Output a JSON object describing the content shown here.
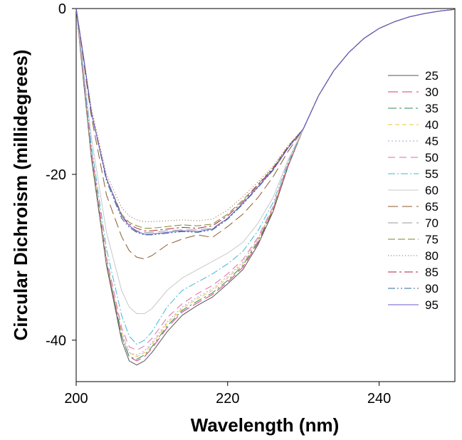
{
  "chart_data": {
    "type": "line",
    "title": "",
    "xlabel": "Wavelength (nm)",
    "ylabel": "Circular Dichroism (millidegrees)",
    "xlim": [
      200,
      250
    ],
    "ylim": [
      -45,
      0
    ],
    "xticks": [
      200,
      220,
      240
    ],
    "yticks": [
      0,
      -20,
      -40
    ],
    "xtick_labels": [
      "200",
      "220",
      "240"
    ],
    "ytick_labels": [
      "0",
      "-20",
      "-40"
    ],
    "grid": false,
    "legend_position": "right",
    "series": [
      {
        "name": "25",
        "color": "#555555",
        "dash": "",
        "x": [
          200,
          201,
          202,
          204,
          206,
          207,
          208,
          209,
          210,
          212,
          214,
          216,
          218,
          220,
          222,
          224,
          226,
          228,
          230,
          232,
          234,
          236,
          238,
          240,
          242,
          244,
          246,
          248,
          250
        ],
        "y": [
          0,
          -9,
          -18,
          -31,
          -40,
          -42.5,
          -43,
          -42.5,
          -41.5,
          -39,
          -37,
          -35.8,
          -34.8,
          -33.2,
          -31.5,
          -28.5,
          -24.5,
          -19,
          -14.5,
          -10.5,
          -7.5,
          -5.3,
          -3.6,
          -2.4,
          -1.6,
          -1,
          -0.6,
          -0.3,
          -0.1
        ]
      },
      {
        "name": "30",
        "color": "#d9397f",
        "dash": "14,6",
        "x": [
          200,
          201,
          202,
          204,
          206,
          207,
          208,
          209,
          210,
          212,
          214,
          216,
          218,
          220,
          222,
          224,
          226,
          228,
          230,
          232,
          234,
          236,
          238,
          240,
          242,
          244,
          246,
          248,
          250
        ],
        "y": [
          0,
          -8.5,
          -17.5,
          -30.5,
          -39.5,
          -42,
          -42.5,
          -42,
          -41,
          -38.5,
          -36.6,
          -35.5,
          -34.5,
          -33,
          -31.2,
          -28.3,
          -24.3,
          -18.9,
          -14.5,
          -10.5,
          -7.5,
          -5.3,
          -3.6,
          -2.4,
          -1.6,
          -1,
          -0.6,
          -0.3,
          -0.1
        ]
      },
      {
        "name": "35",
        "color": "#2e8b57",
        "dash": "12,4,3,4",
        "x": [
          200,
          201,
          202,
          204,
          206,
          207,
          208,
          209,
          210,
          212,
          214,
          216,
          218,
          220,
          222,
          224,
          226,
          228,
          230,
          232,
          234,
          236,
          238,
          240,
          242,
          244,
          246,
          248,
          250
        ],
        "y": [
          0,
          -8.5,
          -17.5,
          -30.5,
          -39.5,
          -42,
          -42.3,
          -41.8,
          -40.8,
          -38.3,
          -36.4,
          -35.3,
          -34.3,
          -32.8,
          -31,
          -28.1,
          -24.2,
          -18.8,
          -14.5,
          -10.5,
          -7.5,
          -5.3,
          -3.6,
          -2.4,
          -1.6,
          -1,
          -0.6,
          -0.3,
          -0.1
        ]
      },
      {
        "name": "40",
        "color": "#f2c230",
        "dash": "6,4",
        "x": [
          200,
          201,
          202,
          204,
          206,
          207,
          208,
          209,
          210,
          212,
          214,
          216,
          218,
          220,
          222,
          224,
          226,
          228,
          230,
          232,
          234,
          236,
          238,
          240,
          242,
          244,
          246,
          248,
          250
        ],
        "y": [
          0,
          -8.5,
          -17.5,
          -30.5,
          -39,
          -41.5,
          -42,
          -41.5,
          -40.5,
          -38,
          -36.2,
          -35,
          -34,
          -32.5,
          -30.8,
          -27.9,
          -24.1,
          -18.8,
          -14.5,
          -10.5,
          -7.5,
          -5.3,
          -3.6,
          -2.4,
          -1.6,
          -1,
          -0.6,
          -0.3,
          -0.1
        ]
      },
      {
        "name": "45",
        "color": "#b39bd1",
        "dash": "2,3",
        "x": [
          200,
          201,
          202,
          204,
          206,
          207,
          208,
          209,
          210,
          212,
          214,
          216,
          218,
          220,
          222,
          224,
          226,
          228,
          230,
          232,
          234,
          236,
          238,
          240,
          242,
          244,
          246,
          248,
          250
        ],
        "y": [
          0,
          -8.5,
          -17.5,
          -30.5,
          -39,
          -41.5,
          -41.8,
          -41.3,
          -40.3,
          -37.8,
          -36,
          -34.8,
          -33.8,
          -32.3,
          -30.6,
          -27.8,
          -24,
          -18.7,
          -14.5,
          -10.5,
          -7.5,
          -5.3,
          -3.6,
          -2.4,
          -1.6,
          -1,
          -0.6,
          -0.3,
          -0.1
        ]
      },
      {
        "name": "50",
        "color": "#e26aa6",
        "dash": "10,6",
        "x": [
          200,
          201,
          202,
          204,
          206,
          207,
          208,
          209,
          210,
          212,
          214,
          216,
          218,
          220,
          222,
          224,
          226,
          228,
          230,
          232,
          234,
          236,
          238,
          240,
          242,
          244,
          246,
          248,
          250
        ],
        "y": [
          0,
          -8.5,
          -17,
          -30,
          -38.5,
          -40.8,
          -41.2,
          -40.7,
          -39.8,
          -37.3,
          -35.6,
          -34.4,
          -33.4,
          -32,
          -30.3,
          -27.6,
          -23.9,
          -18.7,
          -14.5,
          -10.5,
          -7.5,
          -5.3,
          -3.6,
          -2.4,
          -1.6,
          -1,
          -0.6,
          -0.3,
          -0.1
        ]
      },
      {
        "name": "55",
        "color": "#3fb8d6",
        "dash": "10,3,2,3",
        "x": [
          200,
          201,
          202,
          204,
          206,
          207,
          208,
          209,
          210,
          212,
          214,
          216,
          218,
          220,
          222,
          224,
          226,
          228,
          230,
          232,
          234,
          236,
          238,
          240,
          242,
          244,
          246,
          248,
          250
        ],
        "y": [
          0,
          -8,
          -16.5,
          -29,
          -37,
          -39.5,
          -40.5,
          -40,
          -39,
          -36,
          -34,
          -33,
          -32,
          -30.8,
          -29.3,
          -26.8,
          -23.4,
          -18.5,
          -14.5,
          -10.5,
          -7.5,
          -5.3,
          -3.6,
          -2.4,
          -1.6,
          -1,
          -0.6,
          -0.3,
          -0.1
        ]
      },
      {
        "name": "60",
        "color": "#c8c8c8",
        "dash": "",
        "x": [
          200,
          201,
          202,
          204,
          206,
          207,
          208,
          209,
          210,
          212,
          214,
          216,
          218,
          220,
          222,
          224,
          226,
          228,
          230,
          232,
          234,
          236,
          238,
          240,
          242,
          244,
          246,
          248,
          250
        ],
        "y": [
          0,
          -7.5,
          -15.5,
          -27,
          -34,
          -36,
          -36.8,
          -36.8,
          -36.2,
          -34,
          -32.5,
          -31.5,
          -30.5,
          -29.5,
          -28.2,
          -25.9,
          -22.8,
          -18.2,
          -14.5,
          -10.5,
          -7.5,
          -5.3,
          -3.6,
          -2.4,
          -1.6,
          -1,
          -0.6,
          -0.3,
          -0.1
        ]
      },
      {
        "name": "65",
        "color": "#8b5a2b",
        "dash": "14,6",
        "x": [
          200,
          201,
          202,
          204,
          206,
          207,
          208,
          209,
          210,
          212,
          214,
          216,
          218,
          220,
          222,
          224,
          226,
          228,
          230,
          232,
          234,
          236,
          238,
          240,
          242,
          244,
          246,
          248,
          250
        ],
        "y": [
          0,
          -6.5,
          -13,
          -22.5,
          -27.5,
          -29.2,
          -30,
          -30.2,
          -29.8,
          -28.5,
          -27.8,
          -27.3,
          -27.6,
          -26.3,
          -24.8,
          -22.8,
          -20.3,
          -17.2,
          -14.5,
          -10.5,
          -7.5,
          -5.3,
          -3.6,
          -2.4,
          -1.6,
          -1,
          -0.6,
          -0.3,
          -0.1
        ]
      },
      {
        "name": "70",
        "color": "#999999",
        "dash": "14,6",
        "x": [
          200,
          201,
          202,
          204,
          206,
          207,
          208,
          209,
          210,
          212,
          214,
          216,
          218,
          220,
          222,
          224,
          226,
          228,
          230,
          232,
          234,
          236,
          238,
          240,
          242,
          244,
          246,
          248,
          250
        ],
        "y": [
          0,
          -6,
          -12.5,
          -20.5,
          -25,
          -26.2,
          -26.8,
          -27,
          -27,
          -26.8,
          -26.7,
          -26.7,
          -26.5,
          -25.3,
          -23.5,
          -21.5,
          -19.5,
          -16.8,
          -14.5,
          -10.5,
          -7.5,
          -5.3,
          -3.6,
          -2.4,
          -1.6,
          -1,
          -0.6,
          -0.3,
          -0.1
        ]
      },
      {
        "name": "75",
        "color": "#7a8a2a",
        "dash": "10,4",
        "x": [
          200,
          201,
          202,
          204,
          206,
          207,
          208,
          209,
          210,
          212,
          214,
          216,
          218,
          220,
          222,
          224,
          226,
          228,
          230,
          232,
          234,
          236,
          238,
          240,
          242,
          244,
          246,
          248,
          250
        ],
        "y": [
          0,
          -6,
          -12.5,
          -20.5,
          -24.8,
          -25.8,
          -26.2,
          -26.5,
          -26.5,
          -26.3,
          -26.1,
          -26.2,
          -26,
          -24.8,
          -23.1,
          -21.2,
          -19.2,
          -16.6,
          -14.5,
          -10.5,
          -7.5,
          -5.3,
          -3.6,
          -2.4,
          -1.6,
          -1,
          -0.6,
          -0.3,
          -0.1
        ]
      },
      {
        "name": "80",
        "color": "#a0522d",
        "dash": "1,3",
        "x": [
          200,
          201,
          202,
          204,
          206,
          207,
          208,
          209,
          210,
          212,
          214,
          216,
          218,
          220,
          222,
          224,
          226,
          228,
          230,
          232,
          234,
          236,
          238,
          240,
          242,
          244,
          246,
          248,
          250
        ],
        "y": [
          0,
          -6,
          -12,
          -20,
          -24,
          -25,
          -25.5,
          -25.7,
          -25.7,
          -25.6,
          -25.5,
          -25.6,
          -25.4,
          -24.3,
          -22.7,
          -20.9,
          -19,
          -16.5,
          -14.5,
          -10.5,
          -7.5,
          -5.3,
          -3.6,
          -2.4,
          -1.6,
          -1,
          -0.6,
          -0.3,
          -0.1
        ]
      },
      {
        "name": "85",
        "color": "#b2223c",
        "dash": "12,4,3,4",
        "x": [
          200,
          201,
          202,
          204,
          206,
          207,
          208,
          209,
          210,
          212,
          214,
          216,
          218,
          220,
          222,
          224,
          226,
          228,
          230,
          232,
          234,
          236,
          238,
          240,
          242,
          244,
          246,
          248,
          250
        ],
        "y": [
          0,
          -6,
          -12.5,
          -20.5,
          -25,
          -26,
          -26.5,
          -26.8,
          -26.8,
          -26.6,
          -26.4,
          -26.5,
          -26.2,
          -25,
          -23.3,
          -21.3,
          -19.3,
          -16.7,
          -14.5,
          -10.5,
          -7.5,
          -5.3,
          -3.6,
          -2.4,
          -1.6,
          -1,
          -0.6,
          -0.3,
          -0.1
        ]
      },
      {
        "name": "90",
        "color": "#2e6b8b",
        "dash": "10,3,2,3,2,3",
        "x": [
          200,
          201,
          202,
          204,
          206,
          207,
          208,
          209,
          210,
          212,
          214,
          216,
          218,
          220,
          222,
          224,
          226,
          228,
          230,
          232,
          234,
          236,
          238,
          240,
          242,
          244,
          246,
          248,
          250
        ],
        "y": [
          0,
          -6,
          -12.5,
          -20.8,
          -25.3,
          -26.4,
          -27,
          -27.3,
          -27.3,
          -27.1,
          -26.9,
          -27,
          -26.7,
          -25.4,
          -23.6,
          -21.6,
          -19.5,
          -16.8,
          -14.5,
          -10.5,
          -7.5,
          -5.3,
          -3.6,
          -2.4,
          -1.6,
          -1,
          -0.6,
          -0.3,
          -0.1
        ]
      },
      {
        "name": "95",
        "color": "#6a5acd",
        "dash": "",
        "x": [
          200,
          201,
          202,
          204,
          206,
          207,
          208,
          209,
          210,
          212,
          214,
          216,
          218,
          220,
          222,
          224,
          226,
          228,
          230,
          232,
          234,
          236,
          238,
          240,
          242,
          244,
          246,
          248,
          250
        ],
        "y": [
          0,
          -6,
          -12.5,
          -20.5,
          -25,
          -26.2,
          -26.9,
          -27.2,
          -27.2,
          -27,
          -26.8,
          -26.9,
          -26.6,
          -25.3,
          -23.5,
          -21.5,
          -19.4,
          -16.8,
          -14.5,
          -10.5,
          -7.5,
          -5.3,
          -3.6,
          -2.4,
          -1.6,
          -1,
          -0.6,
          -0.3,
          -0.1
        ]
      }
    ]
  }
}
